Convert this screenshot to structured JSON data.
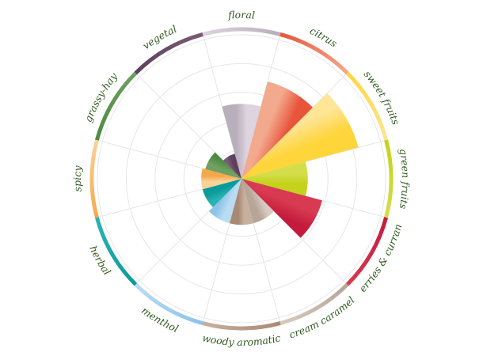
{
  "chart_data": {
    "type": "polar-area",
    "title": "",
    "grid": true,
    "rmax": 5,
    "grid_rings": [
      1,
      2,
      3,
      4,
      5
    ],
    "categories": [
      {
        "name": "floral",
        "value": 2.6,
        "color_start": "#b9aebb",
        "color_end": "#ddd4df"
      },
      {
        "name": "citrus",
        "value": 3.5,
        "color_start": "#f3a98e",
        "color_end": "#e8553a"
      },
      {
        "name": "sweet fruits",
        "value": 4.2,
        "color_start": "#ffe596",
        "color_end": "#ffd53c"
      },
      {
        "name": "green fruits",
        "value": 2.3,
        "color_start": "#d3de4a",
        "color_end": "#c5d21c"
      },
      {
        "name": "berries & currant",
        "value": 2.9,
        "color_start": "#d83a52",
        "color_end": "#c41a3c"
      },
      {
        "name": "cream caramel",
        "value": 1.6,
        "color_start": "#d6cbc0",
        "color_end": "#b7a597"
      },
      {
        "name": "woody aromatic",
        "value": 1.6,
        "color_start": "#c8b0a0",
        "color_end": "#a88a74"
      },
      {
        "name": "menthol",
        "value": 1.6,
        "color_start": "#b9dcf2",
        "color_end": "#8cc3e8"
      },
      {
        "name": "herbal",
        "value": 1.4,
        "color_start": "#2bb3b3",
        "color_end": "#0b9b9b"
      },
      {
        "name": "spicy",
        "value": 1.4,
        "color_start": "#fbd39a",
        "color_end": "#f5a84a"
      },
      {
        "name": "grassy-hay",
        "value": 1.3,
        "color_start": "#6fa061",
        "color_end": "#4f8a41"
      },
      {
        "name": "vegetal",
        "value": 0.9,
        "color_start": "#7a5a74",
        "color_end": "#5e3f5c"
      }
    ]
  }
}
